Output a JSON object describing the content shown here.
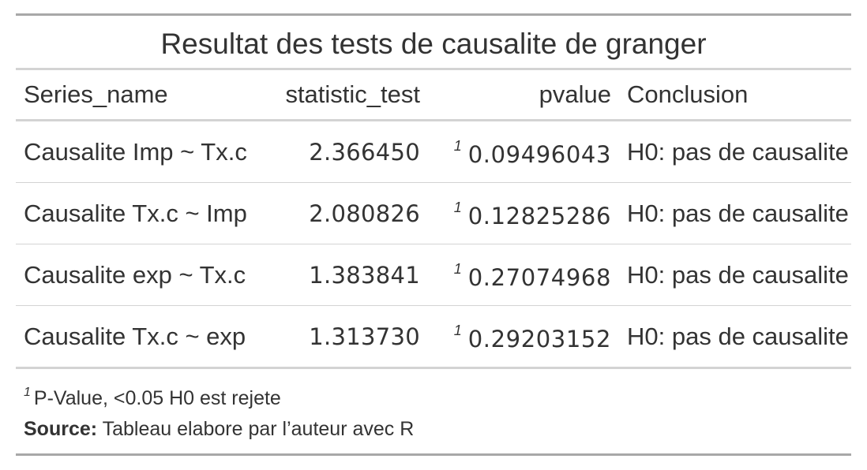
{
  "table": {
    "title": "Resultat des tests de causalite de granger",
    "columns": [
      "Series_name",
      "statistic_test",
      "pvalue",
      "Conclusion"
    ],
    "rows": [
      {
        "series_name": "Causalite Imp ~ Tx.c",
        "statistic_test": "2.366450",
        "footnote_mark": "1",
        "pvalue": "0.09496043",
        "conclusion": "H0: pas de causalite"
      },
      {
        "series_name": "Causalite Tx.c ~ Imp",
        "statistic_test": "2.080826",
        "footnote_mark": "1",
        "pvalue": "0.12825286",
        "conclusion": "H0: pas de causalite"
      },
      {
        "series_name": "Causalite exp ~ Tx.c",
        "statistic_test": "1.383841",
        "footnote_mark": "1",
        "pvalue": "0.27074968",
        "conclusion": "H0: pas de causalite"
      },
      {
        "series_name": "Causalite Tx.c ~ exp",
        "statistic_test": "1.313730",
        "footnote_mark": "1",
        "pvalue": "0.29203152",
        "conclusion": "H0: pas de causalite"
      }
    ],
    "footnote": {
      "mark": "1",
      "text": "P-Value, <0.05 H0 est rejete"
    },
    "source": {
      "label": "Source:",
      "text": "Tableau elabore par l’auteur avec R"
    }
  }
}
